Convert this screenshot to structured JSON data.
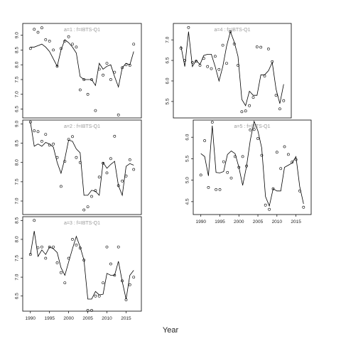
{
  "figure": {
    "xlabel": "Year"
  },
  "chart_data": [
    {
      "type": "line",
      "title": "a=1 :  f=IBTS-Q1",
      "xlim": [
        1988,
        2019
      ],
      "ylim": [
        6.2,
        9.4
      ],
      "yticks": [
        6.5,
        7.0,
        7.5,
        8.0,
        8.5,
        9.0
      ],
      "yticklabels": [
        "6.5",
        "7.0",
        "7.5",
        "8.0",
        "8.5",
        "9.0"
      ],
      "series": [
        {
          "kind": "points",
          "x": [
            1990,
            1991,
            1992,
            1993,
            1994,
            1995,
            1996,
            1997,
            1998,
            1999,
            2000,
            2001,
            2002,
            2003,
            2004,
            2005,
            2006,
            2007,
            2008,
            2009,
            2010,
            2011,
            2012,
            2013,
            2014,
            2015,
            2016,
            2017
          ],
          "y": [
            8.55,
            9.2,
            9.1,
            9.25,
            8.85,
            8.8,
            8.5,
            7.95,
            8.55,
            8.8,
            8.95,
            8.7,
            8.6,
            7.15,
            7.5,
            7.0,
            7.5,
            6.45,
            7.85,
            7.65,
            8.05,
            7.5,
            7.75,
            6.3,
            7.9,
            8.0,
            7.98,
            8.7
          ]
        },
        {
          "kind": "line",
          "x": [
            1990,
            1991,
            1992,
            1993,
            1994,
            1995,
            1996,
            1997,
            1998,
            1999,
            2000,
            2001,
            2002,
            2003,
            2004,
            2005,
            2006,
            2007,
            2008,
            2009,
            2010,
            2011,
            2012,
            2013,
            2014,
            2015,
            2016,
            2017
          ],
          "y": [
            8.6,
            8.6,
            8.65,
            8.7,
            8.6,
            8.45,
            8.2,
            7.95,
            8.5,
            8.85,
            8.75,
            8.6,
            8.4,
            7.6,
            7.5,
            7.5,
            7.5,
            7.3,
            8.05,
            7.85,
            7.95,
            8.0,
            7.6,
            7.25,
            7.9,
            8.05,
            8.0,
            8.45
          ]
        }
      ]
    },
    {
      "type": "line",
      "title": "a=4 :  f=IBTS-Q1",
      "xlim": [
        1988,
        2019
      ],
      "ylim": [
        5.1,
        7.4
      ],
      "yticks": [
        5.5,
        6.0,
        6.5,
        7.0
      ],
      "yticklabels": [
        "5.5",
        "6.0",
        "6.5",
        "7.0"
      ],
      "series": [
        {
          "kind": "points",
          "x": [
            1990,
            1991,
            1992,
            1993,
            1994,
            1995,
            1996,
            1997,
            1998,
            1999,
            2000,
            2001,
            2002,
            2003,
            2004,
            2005,
            2006,
            2007,
            2008,
            2009,
            2010,
            2011,
            2012,
            2013,
            2014,
            2015,
            2016,
            2017
          ],
          "y": [
            6.8,
            6.5,
            7.3,
            6.45,
            6.48,
            6.38,
            6.55,
            6.35,
            6.3,
            6.6,
            6.28,
            6.87,
            6.43,
            7.2,
            6.9,
            6.38,
            5.25,
            5.27,
            5.4,
            5.6,
            6.83,
            6.82,
            6.12,
            6.78,
            6.47,
            5.65,
            5.32,
            5.52
          ]
        },
        {
          "kind": "line",
          "x": [
            1990,
            1991,
            1992,
            1993,
            1994,
            1995,
            1996,
            1997,
            1998,
            1999,
            2000,
            2001,
            2002,
            2003,
            2004,
            2005,
            2006,
            2007,
            2008,
            2009,
            2010,
            2011,
            2012,
            2013,
            2014,
            2015,
            2016,
            2017
          ],
          "y": [
            6.85,
            6.35,
            7.2,
            6.35,
            6.5,
            6.4,
            6.62,
            6.65,
            6.65,
            6.35,
            6.0,
            6.35,
            6.85,
            7.2,
            6.95,
            6.6,
            5.55,
            5.4,
            5.75,
            5.65,
            5.65,
            6.15,
            6.15,
            6.25,
            6.45,
            5.8,
            5.45,
            5.92
          ]
        }
      ]
    },
    {
      "type": "line",
      "title": "a=2 :  f=IBTS-Q1",
      "xlim": [
        1988,
        2019
      ],
      "ylim": [
        6.65,
        9.1
      ],
      "yticks": [
        7.0,
        7.5,
        8.0,
        8.5,
        9.0
      ],
      "yticklabels": [
        "7.0",
        "7.5",
        "8.0",
        "8.5",
        "9.0"
      ],
      "series": [
        {
          "kind": "points",
          "x": [
            1990,
            1991,
            1992,
            1993,
            1994,
            1995,
            1996,
            1997,
            1998,
            1999,
            2000,
            2001,
            2002,
            2003,
            2004,
            2005,
            2006,
            2007,
            2008,
            2009,
            2010,
            2011,
            2012,
            2013,
            2014,
            2015,
            2016,
            2017
          ],
          "y": [
            9.05,
            8.82,
            8.8,
            8.55,
            8.73,
            8.45,
            8.48,
            8.13,
            7.38,
            8.03,
            8.6,
            8.67,
            8.13,
            8.0,
            6.77,
            6.85,
            7.12,
            7.27,
            7.62,
            7.98,
            7.73,
            8.1,
            8.68,
            7.4,
            7.52,
            7.65,
            8.07,
            7.82
          ]
        },
        {
          "kind": "line",
          "x": [
            1990,
            1991,
            1992,
            1993,
            1994,
            1995,
            1996,
            1997,
            1998,
            1999,
            2000,
            2001,
            2002,
            2003,
            2004,
            2005,
            2006,
            2007,
            2008,
            2009,
            2010,
            2011,
            2012,
            2013,
            2014,
            2015,
            2016,
            2017
          ],
          "y": [
            9.05,
            8.42,
            8.48,
            8.42,
            8.52,
            8.48,
            8.4,
            8.0,
            7.72,
            8.1,
            8.58,
            8.55,
            8.35,
            8.25,
            7.15,
            7.15,
            7.28,
            7.25,
            7.15,
            8.0,
            7.85,
            7.95,
            8.03,
            7.4,
            7.15,
            7.9,
            7.97,
            7.93
          ]
        }
      ]
    },
    {
      "type": "line",
      "title": "a=5 :  f=IBTS-Q1",
      "xlim": [
        1988,
        2019
      ],
      "ylim": [
        4.2,
        6.4
      ],
      "yticks": [
        4.5,
        5.0,
        5.5,
        6.0
      ],
      "yticklabels": [
        "4.5",
        "5.0",
        "5.5",
        "6.0"
      ],
      "series": [
        {
          "kind": "points",
          "x": [
            1990,
            1991,
            1992,
            1993,
            1994,
            1995,
            1996,
            1997,
            1998,
            1999,
            2000,
            2001,
            2002,
            2003,
            2004,
            2005,
            2006,
            2007,
            2008,
            2009,
            2010,
            2011,
            2012,
            2013,
            2014,
            2015,
            2016,
            2017
          ],
          "y": [
            5.12,
            5.92,
            4.83,
            6.35,
            4.78,
            4.78,
            5.43,
            5.18,
            5.05,
            5.55,
            5.3,
            5.55,
            5.33,
            6.17,
            6.18,
            5.97,
            5.58,
            4.42,
            4.32,
            4.8,
            5.65,
            5.27,
            5.78,
            5.6,
            5.42,
            5.48,
            4.75,
            4.37
          ]
        },
        {
          "kind": "line",
          "x": [
            1990,
            1991,
            1992,
            1993,
            1994,
            1995,
            1996,
            1997,
            1998,
            1999,
            2000,
            2001,
            2002,
            2003,
            2004,
            2005,
            2006,
            2007,
            2008,
            2009,
            2010,
            2011,
            2012,
            2013,
            2014,
            2015,
            2016,
            2017
          ],
          "y": [
            5.62,
            5.55,
            5.1,
            6.27,
            5.18,
            5.17,
            5.2,
            5.6,
            5.68,
            5.62,
            5.3,
            4.88,
            5.32,
            5.93,
            6.37,
            6.15,
            5.75,
            4.62,
            4.4,
            4.8,
            4.75,
            4.75,
            5.3,
            5.35,
            5.4,
            5.55,
            4.85,
            4.45
          ]
        }
      ]
    },
    {
      "type": "line",
      "title": "a=3 :  f=IBTS-Q1",
      "xlim": [
        1988,
        2019
      ],
      "ylim": [
        6.1,
        8.6
      ],
      "yticks": [
        6.5,
        7.0,
        7.5,
        8.0,
        8.5
      ],
      "yticklabels": [
        "6.5",
        "7.0",
        "7.5",
        "8.0",
        "8.5"
      ],
      "xticks": [
        1990,
        1995,
        2000,
        2005,
        2010,
        2015
      ],
      "xticklabels": [
        "1990",
        "1995",
        "2000",
        "2005",
        "2010",
        "2015"
      ],
      "series": [
        {
          "kind": "points",
          "x": [
            1990,
            1991,
            1992,
            1993,
            1994,
            1995,
            1996,
            1997,
            1998,
            1999,
            2000,
            2001,
            2002,
            2003,
            2004,
            2005,
            2006,
            2007,
            2008,
            2009,
            2010,
            2011,
            2012,
            2013,
            2014,
            2015,
            2016,
            2017
          ],
          "y": [
            7.6,
            8.5,
            7.78,
            7.8,
            7.5,
            7.8,
            7.8,
            7.38,
            7.12,
            6.85,
            7.5,
            8.0,
            7.85,
            7.77,
            7.45,
            6.12,
            6.12,
            6.5,
            6.5,
            6.85,
            7.8,
            7.35,
            7.05,
            7.8,
            6.9,
            6.4,
            6.8,
            7.0
          ]
        },
        {
          "kind": "line",
          "x": [
            1990,
            1991,
            1992,
            1993,
            1994,
            1995,
            1996,
            1997,
            1998,
            1999,
            2000,
            2001,
            2002,
            2003,
            2004,
            2005,
            2006,
            2007,
            2008,
            2009,
            2010,
            2011,
            2012,
            2013,
            2014,
            2015,
            2016,
            2017
          ],
          "y": [
            7.6,
            8.22,
            7.55,
            7.72,
            7.6,
            7.8,
            7.75,
            7.65,
            7.25,
            7.05,
            7.4,
            7.75,
            8.08,
            7.8,
            7.45,
            6.42,
            6.42,
            6.62,
            6.53,
            6.55,
            7.1,
            7.05,
            7.05,
            7.42,
            6.88,
            6.42,
            7.05,
            7.18
          ]
        }
      ]
    }
  ]
}
